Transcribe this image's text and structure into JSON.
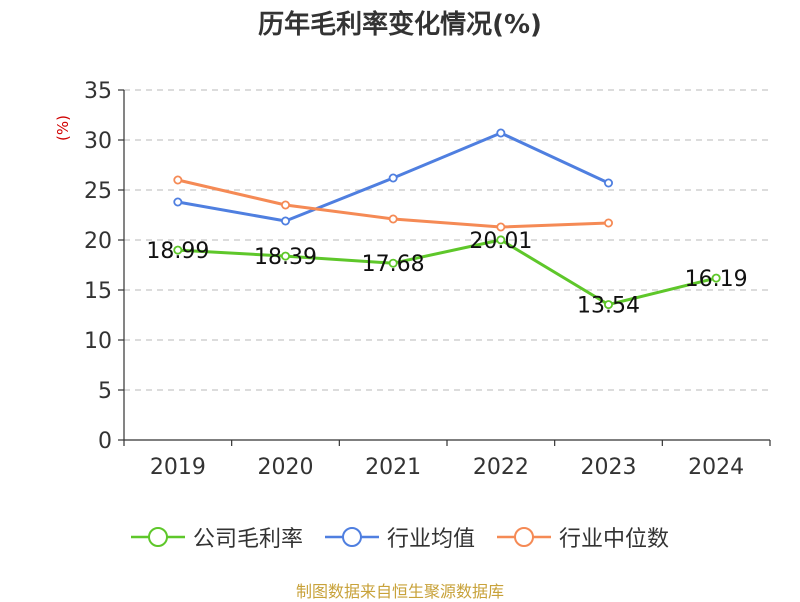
{
  "chart_data": {
    "type": "line",
    "title": "历年毛利率变化情况(%)",
    "ylabel": "(%)",
    "xlabel": "",
    "categories": [
      "2019",
      "2020",
      "2021",
      "2022",
      "2023",
      "2024"
    ],
    "ylim": [
      0,
      35
    ],
    "yticks": [
      0,
      5,
      10,
      15,
      20,
      25,
      30,
      35
    ],
    "grid": "horizontal-dashed",
    "legend_position": "bottom",
    "series": [
      {
        "name": "公司毛利率",
        "color": "#5ec72a",
        "values": [
          18.99,
          18.39,
          17.68,
          20.01,
          13.54,
          16.19
        ],
        "labels": [
          "18.99",
          "18.39",
          "17.68",
          "20.01",
          "13.54",
          "16.19"
        ]
      },
      {
        "name": "行业均值",
        "color": "#4f7fe0",
        "values": [
          23.8,
          21.9,
          26.2,
          30.7,
          25.7,
          null
        ]
      },
      {
        "name": "行业中位数",
        "color": "#f58a55",
        "values": [
          26.0,
          23.5,
          22.1,
          21.3,
          21.7,
          null
        ]
      }
    ]
  },
  "source": "制图数据来自恒生聚源数据库"
}
